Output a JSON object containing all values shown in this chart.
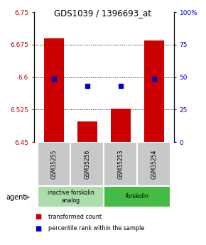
{
  "title": "GDS1039 / 1396693_at",
  "samples": [
    "GSM35255",
    "GSM35256",
    "GSM35253",
    "GSM35254"
  ],
  "bar_values": [
    6.69,
    6.497,
    6.527,
    6.685
  ],
  "blue_values": [
    49,
    43,
    43,
    49
  ],
  "ylim_left": [
    6.45,
    6.75
  ],
  "ylim_right": [
    0,
    100
  ],
  "yticks_left": [
    6.45,
    6.525,
    6.6,
    6.675,
    6.75
  ],
  "ytick_labels_left": [
    "6.45",
    "6.525",
    "6.6",
    "6.675",
    "6.75"
  ],
  "yticks_right": [
    0,
    25,
    50,
    75,
    100
  ],
  "ytick_labels_right": [
    "0",
    "25",
    "50",
    "75",
    "100%"
  ],
  "bar_color": "#cc0000",
  "blue_color": "#0000cc",
  "bar_bottom": 6.45,
  "gridlines": [
    6.525,
    6.6,
    6.675
  ],
  "groups": [
    {
      "label": "inactive forskolin\nanalog",
      "start": 0,
      "end": 2,
      "color": "#aaddaa"
    },
    {
      "label": "forskolin",
      "start": 2,
      "end": 4,
      "color": "#44bb44"
    }
  ],
  "legend_items": [
    {
      "label": "transformed count",
      "color": "#cc0000"
    },
    {
      "label": "percentile rank within the sample",
      "color": "#0000cc"
    }
  ],
  "agent_label": "agent",
  "figsize": [
    2.9,
    3.45
  ],
  "dpi": 100
}
